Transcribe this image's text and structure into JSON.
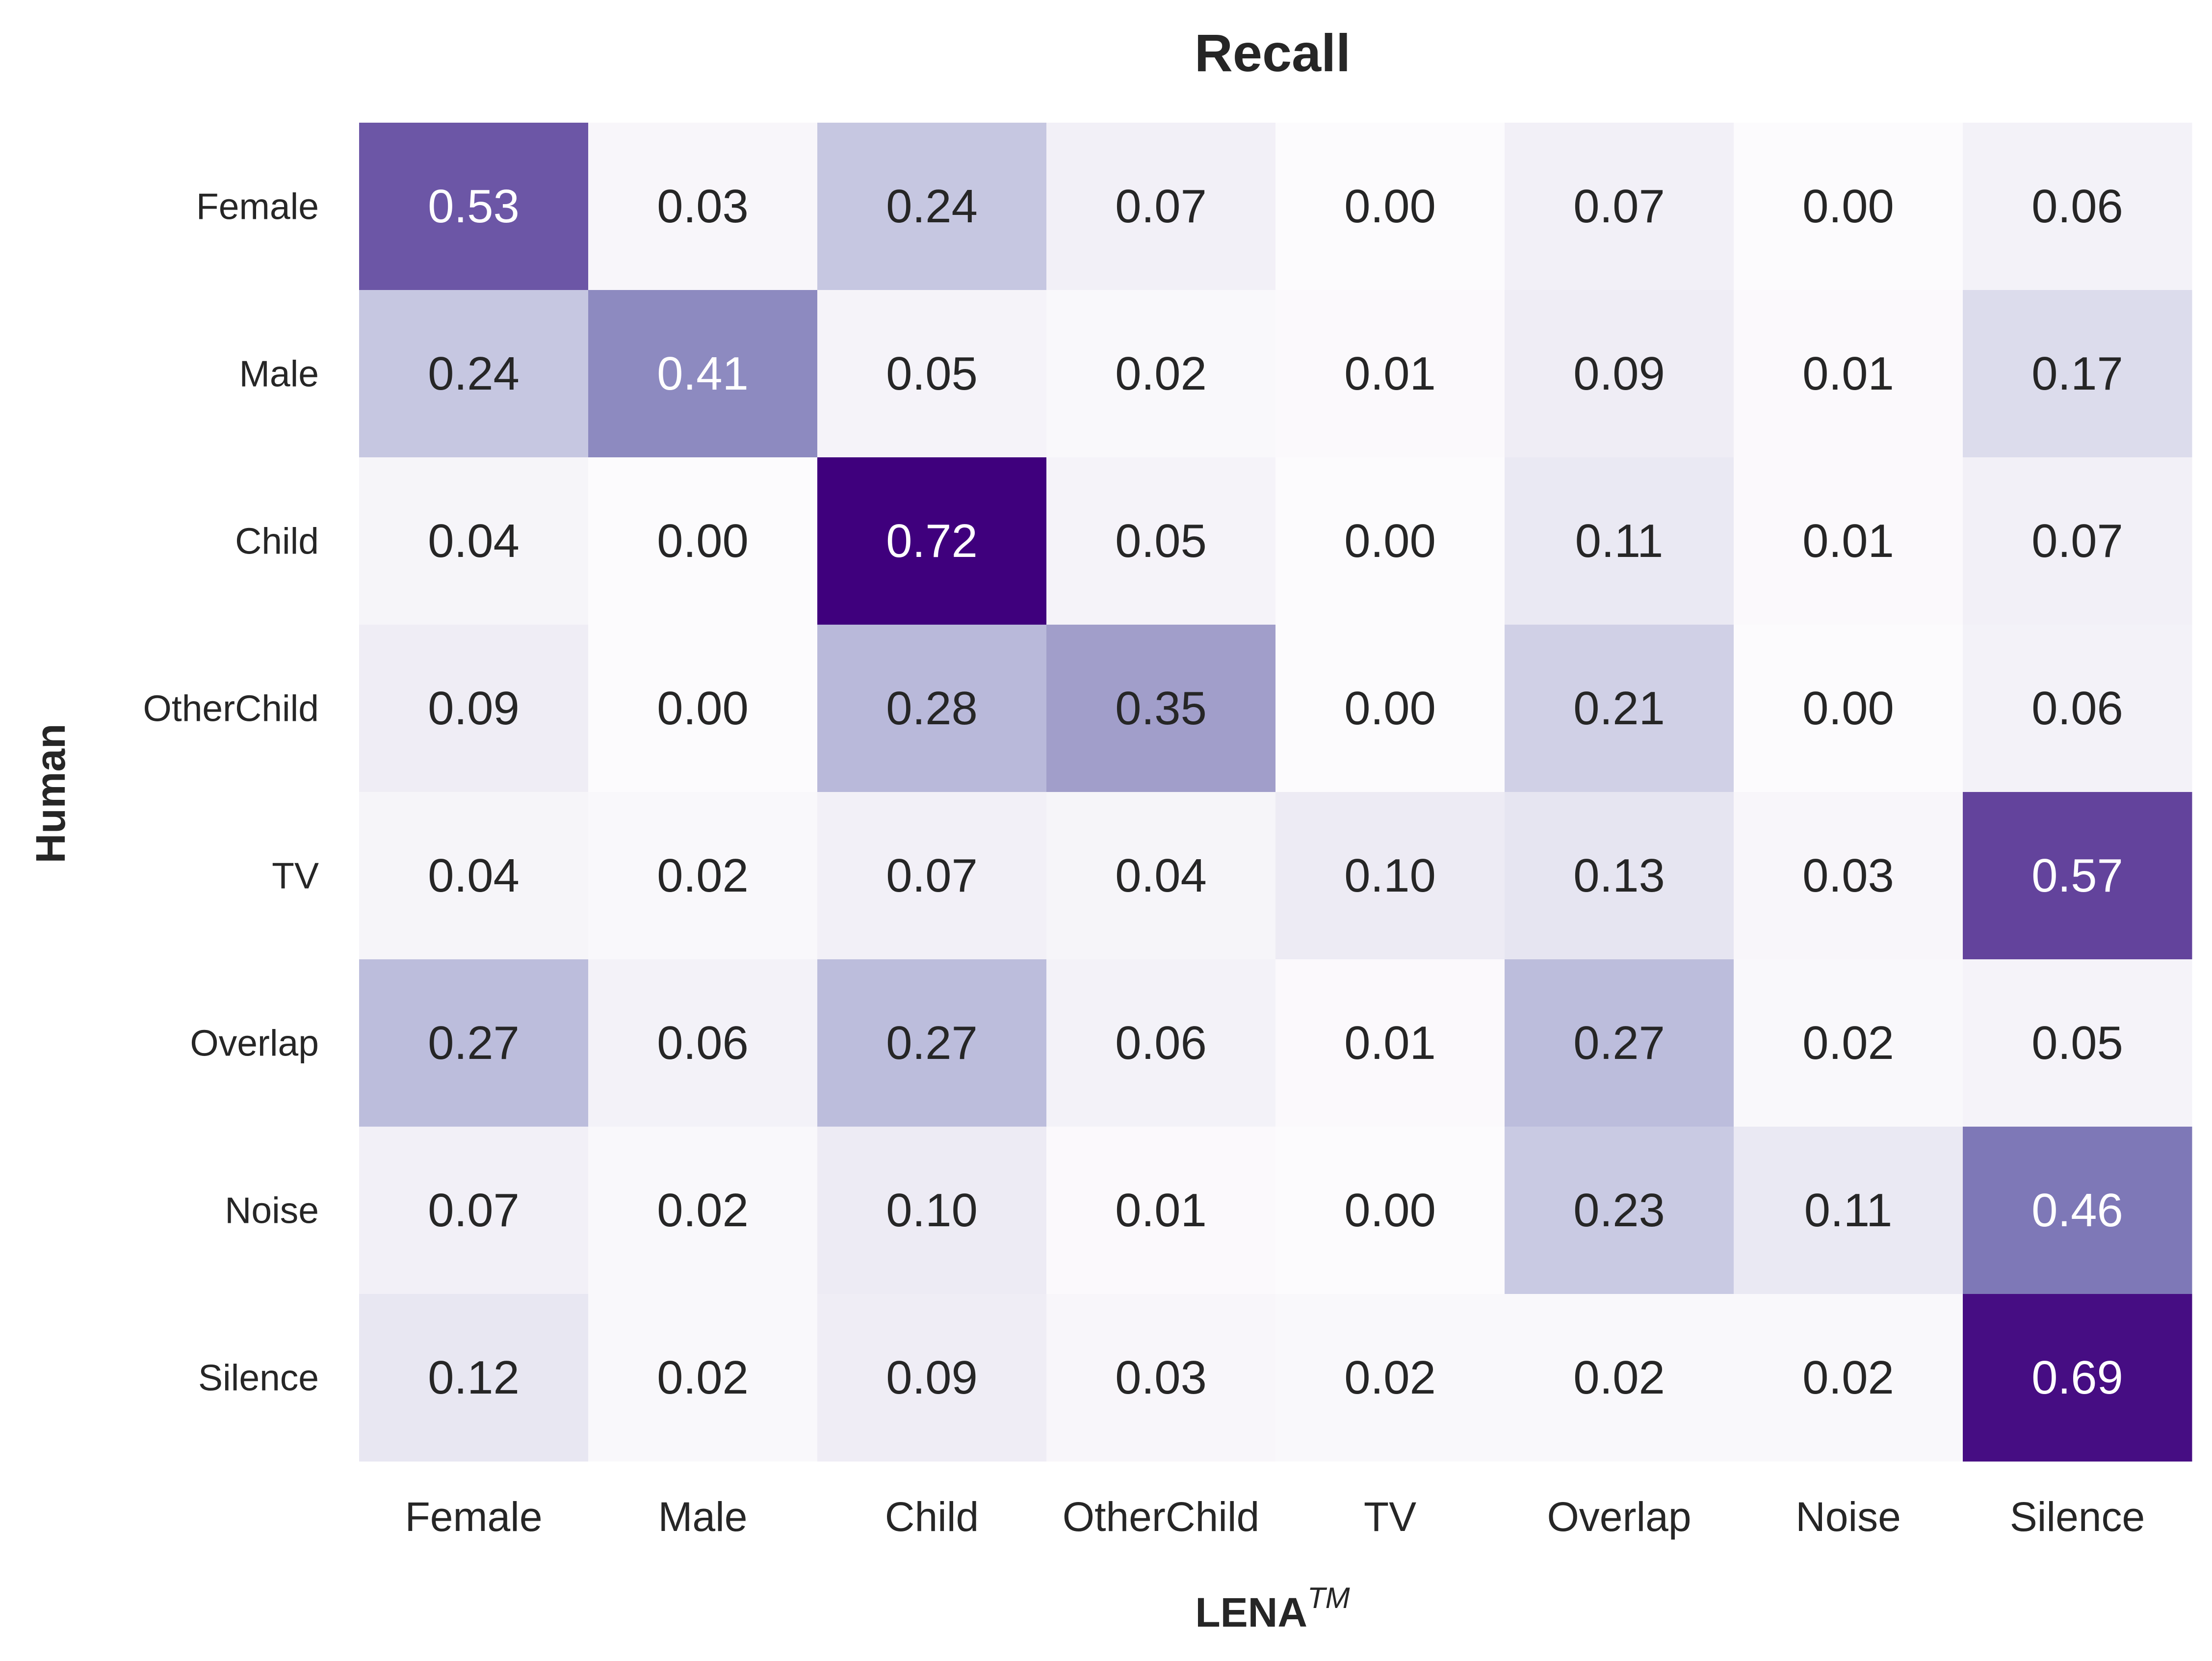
{
  "chart_data": {
    "type": "heatmap",
    "title": "Recall",
    "xlabel": "LENA",
    "xlabel_superscript": "TM",
    "ylabel": "Human",
    "x_categories": [
      "Female",
      "Male",
      "Child",
      "OtherChild",
      "TV",
      "Overlap",
      "Noise",
      "Silence"
    ],
    "y_categories": [
      "Female",
      "Male",
      "Child",
      "OtherChild",
      "TV",
      "Overlap",
      "Noise",
      "Silence"
    ],
    "values": [
      [
        "0.53",
        "0.03",
        "0.24",
        "0.07",
        "0.00",
        "0.07",
        "0.00",
        "0.06"
      ],
      [
        "0.24",
        "0.41",
        "0.05",
        "0.02",
        "0.01",
        "0.09",
        "0.01",
        "0.17"
      ],
      [
        "0.04",
        "0.00",
        "0.72",
        "0.05",
        "0.00",
        "0.11",
        "0.01",
        "0.07"
      ],
      [
        "0.09",
        "0.00",
        "0.28",
        "0.35",
        "0.00",
        "0.21",
        "0.00",
        "0.06"
      ],
      [
        "0.04",
        "0.02",
        "0.07",
        "0.04",
        "0.10",
        "0.13",
        "0.03",
        "0.57"
      ],
      [
        "0.27",
        "0.06",
        "0.27",
        "0.06",
        "0.01",
        "0.27",
        "0.02",
        "0.05"
      ],
      [
        "0.07",
        "0.02",
        "0.10",
        "0.01",
        "0.00",
        "0.23",
        "0.11",
        "0.46"
      ],
      [
        "0.12",
        "0.02",
        "0.09",
        "0.03",
        "0.02",
        "0.02",
        "0.02",
        "0.69"
      ]
    ],
    "colormap": "Purples",
    "color_range": [
      0,
      0.72
    ],
    "colorbar": false,
    "grid": false
  }
}
